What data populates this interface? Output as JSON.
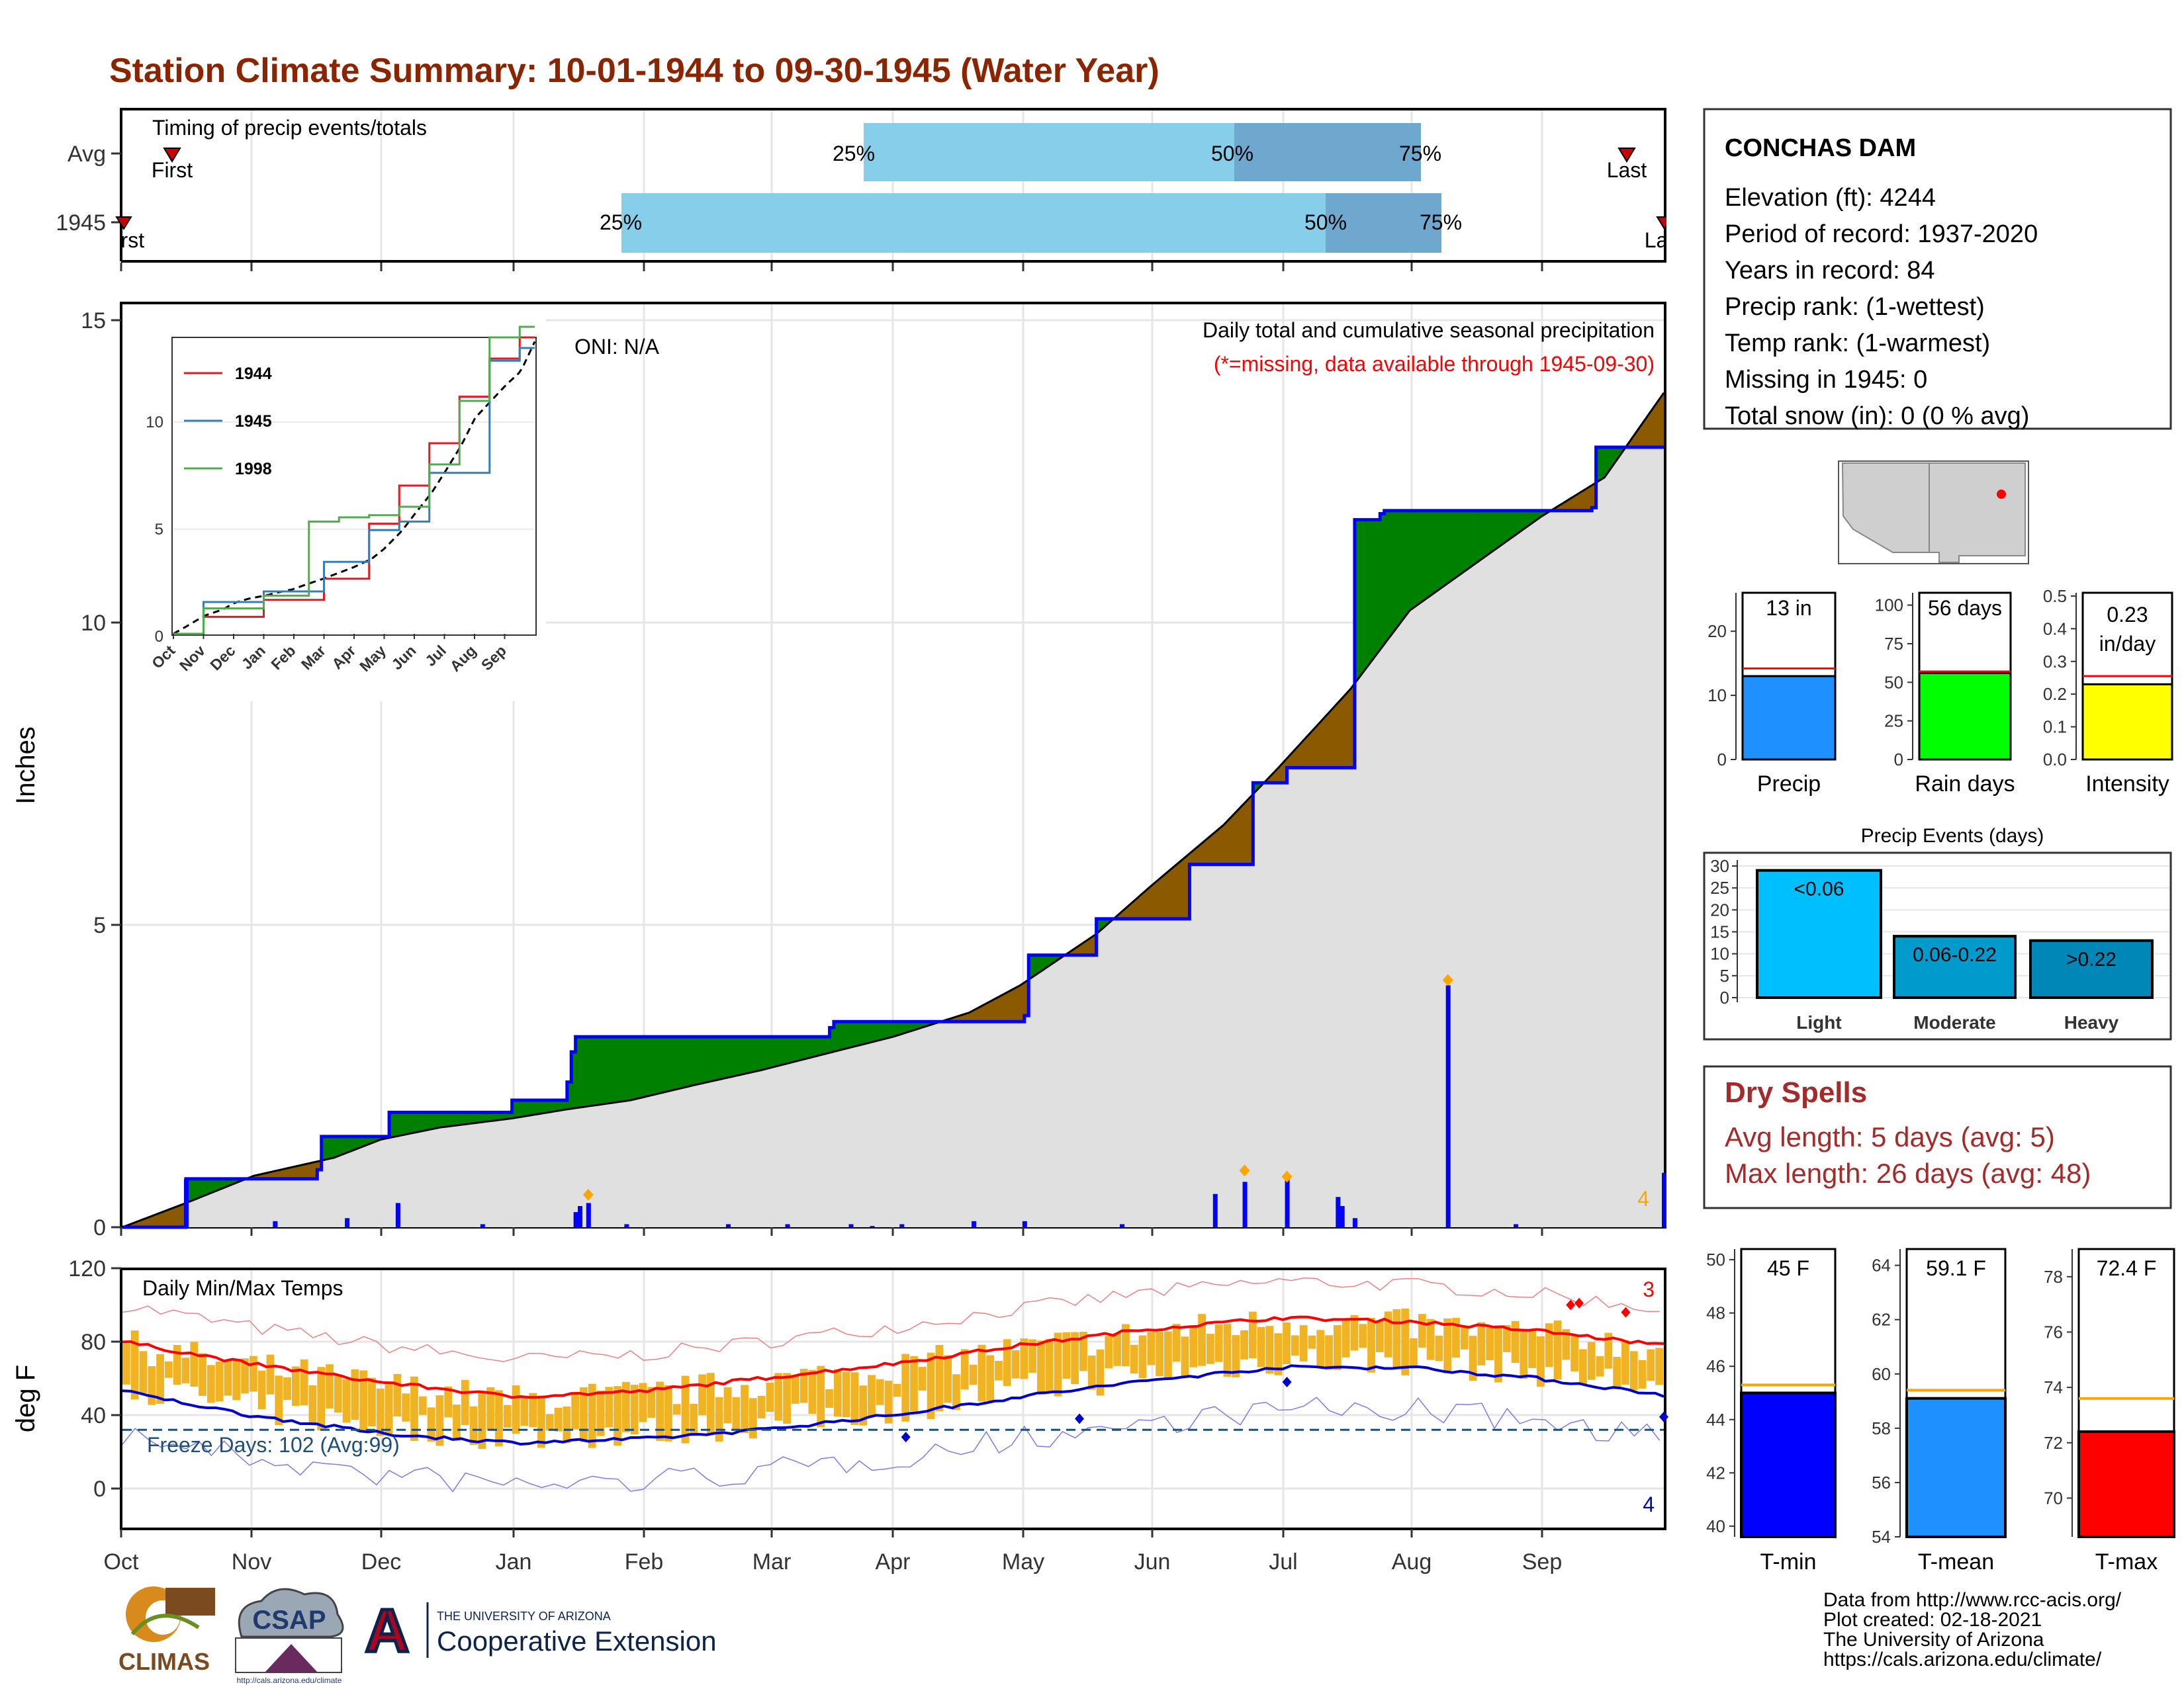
{
  "title": "Station Climate Summary: 10-01-1944 to 09-30-1945 (Water Year)",
  "colors": {
    "title": "#8B2500",
    "precip_bar": "#0000FF",
    "surplus": "#008000",
    "deficit": "#8B5A00",
    "normal_fill": "#E0E0E0",
    "quartile_light": "#87CEEB",
    "quartile_dark": "#6FA8CF",
    "temp_band": "#F0B323",
    "tmax_line": "#FF0000",
    "tmin_line": "#0000CD",
    "freeze_line": "#1F4E79",
    "dry_spell_text": "#A52A2A"
  },
  "timing_panel": {
    "label": "Timing of precip events/totals",
    "rows": [
      {
        "label": "Avg",
        "first_label": "First",
        "last_label": "Last",
        "q25": "25%",
        "q50": "50%",
        "q75": "75%"
      },
      {
        "label": "1945",
        "first_label": "First",
        "last_label": "Last",
        "q25": "25%",
        "q50": "50%",
        "q75": "75%"
      }
    ]
  },
  "station": {
    "name": "CONCHAS DAM",
    "lines": [
      "Elevation (ft): 4244",
      "Period of record: 1937-2020",
      "Years in record: 84",
      "Precip rank:  (1-wettest)",
      "Temp rank:  (1-warmest)",
      "Missing in 1945: 0",
      "Total snow (in): 0 (0 % avg)"
    ]
  },
  "precip_panel": {
    "ylabel": "Inches",
    "subtitle": "Daily total and cumulative seasonal precipitation",
    "missing_note": "(*=missing, data available through 1945-09-30)",
    "oni": "ONI: N/A",
    "extreme_count": "4",
    "yticks": [
      "0",
      "5",
      "10",
      "15"
    ]
  },
  "inset": {
    "series": [
      "1944",
      "1945",
      "1998"
    ],
    "series_colors": [
      "#E41A1C",
      "#377EB8",
      "#4DAF4A"
    ],
    "xticks": [
      "Oct",
      "Nov",
      "Dec",
      "Jan",
      "Feb",
      "Mar",
      "Apr",
      "May",
      "Jun",
      "Jul",
      "Aug",
      "Sep"
    ],
    "yticks": [
      "0",
      "5",
      "10"
    ]
  },
  "temp_panel": {
    "ylabel": "deg F",
    "label": "Daily Min/Max Temps",
    "freeze_label": "Freeze Days: 102 (Avg:99)",
    "hot_count": "3",
    "cold_count": "4",
    "yticks": [
      "0",
      "40",
      "80",
      "120"
    ]
  },
  "month_labels": [
    "Oct",
    "Nov",
    "Dec",
    "Jan",
    "Feb",
    "Mar",
    "Apr",
    "May",
    "Jun",
    "Jul",
    "Aug",
    "Sep"
  ],
  "mini_bars": [
    {
      "value_label": "13 in",
      "xlabel": "Precip",
      "yticks": [
        "0",
        "10",
        "20"
      ],
      "color": "#1E90FF"
    },
    {
      "value_label": "56 days",
      "xlabel": "Rain days",
      "yticks": [
        "0",
        "25",
        "50",
        "75",
        "100"
      ],
      "color": "#00FF00"
    },
    {
      "value_label": "0.23",
      "value_label2": "in/day",
      "xlabel": "Intensity",
      "yticks": [
        "0.0",
        "0.1",
        "0.2",
        "0.3",
        "0.4",
        "0.5"
      ],
      "color": "#FFFF00"
    }
  ],
  "events": {
    "title": "Precip Events (days)",
    "categories": [
      "Light",
      "Moderate",
      "Heavy"
    ],
    "bar_labels": [
      "<0.06",
      "0.06-0.22",
      ">0.22"
    ],
    "values": [
      29,
      14,
      13
    ],
    "colors": [
      "#00BFFF",
      "#009ACD",
      "#0087B8"
    ],
    "yticks": [
      "0",
      "5",
      "10",
      "15",
      "20",
      "25",
      "30"
    ]
  },
  "dry_spells": {
    "title": "Dry Spells",
    "avg_line": "Avg length: 5 days (avg: 5)",
    "max_line": "Max length: 26 days (avg: 48)"
  },
  "temp_bars": [
    {
      "value_label": "45 F",
      "xlabel": "T-min",
      "yticks": [
        "40",
        "42",
        "44",
        "46",
        "48",
        "50"
      ],
      "color": "#0000FF"
    },
    {
      "value_label": "59.1 F",
      "xlabel": "T-mean",
      "yticks": [
        "54",
        "56",
        "58",
        "60",
        "62",
        "64"
      ],
      "color": "#1E90FF"
    },
    {
      "value_label": "72.4 F",
      "xlabel": "T-max",
      "yticks": [
        "70",
        "72",
        "74",
        "76",
        "78"
      ],
      "color": "#FF0000"
    }
  ],
  "footer": {
    "lines": [
      "Data from http://www.rcc-acis.org/",
      "Plot created: 02-18-2021",
      "The University of Arizona",
      "https://cals.arizona.edu/climate/"
    ],
    "logo_climas": "CLIMAS",
    "logo_csap": "CSAP",
    "logo_csap_url": "http://cals.arizona.edu/climate",
    "ua_small": "THE UNIVERSITY OF ARIZONA",
    "ua_large": "Cooperative Extension",
    "ua_letter": "A"
  },
  "chart_data": [
    {
      "type": "area",
      "name": "cumulative_precip",
      "xlabel": "",
      "ylabel": "Inches",
      "ylim": [
        0,
        15
      ],
      "months": [
        "Oct",
        "Nov",
        "Dec",
        "Jan",
        "Feb",
        "Mar",
        "Apr",
        "May",
        "Jun",
        "Jul",
        "Aug",
        "Sep"
      ],
      "normal_cumulative": {
        "x_day": [
          0,
          15,
          31,
          50,
          61,
          75,
          92,
          105,
          120,
          135,
          151,
          165,
          182,
          200,
          212,
          230,
          243,
          260,
          273,
          290,
          304,
          320,
          335,
          350,
          364
        ],
        "y": [
          0,
          0.4,
          0.85,
          1.15,
          1.45,
          1.65,
          1.8,
          1.95,
          2.1,
          2.35,
          2.6,
          2.85,
          3.15,
          3.55,
          4.0,
          4.85,
          5.65,
          6.65,
          7.6,
          8.9,
          10.2,
          11.0,
          11.75,
          12.4,
          13.8
        ]
      },
      "observed_cumulative": {
        "x_day": [
          0,
          14,
          15,
          31,
          32,
          46,
          47,
          62,
          63,
          92,
          93,
          105,
          106,
          107,
          167,
          168,
          213,
          214,
          229,
          230,
          251,
          252,
          266,
          267,
          275,
          276,
          290,
          291,
          297,
          298,
          347,
          348,
          364
        ],
        "y": [
          0,
          0,
          0.8,
          0.8,
          0.8,
          0.95,
          1.5,
          1.5,
          1.9,
          2.1,
          2.1,
          2.4,
          2.9,
          3.15,
          3.3,
          3.4,
          3.5,
          4.5,
          4.5,
          5.1,
          5.1,
          6.0,
          6.0,
          7.35,
          7.6,
          7.6,
          7.6,
          11.7,
          11.8,
          11.85,
          11.9,
          12.9,
          12.9
        ]
      },
      "daily_precip": {
        "x_day": [
          15,
          36,
          53,
          65,
          85,
          107,
          108,
          110,
          119,
          143,
          157,
          172,
          177,
          184,
          201,
          213,
          236,
          258,
          265,
          275,
          287,
          288,
          291,
          313,
          329,
          364
        ],
        "y": [
          0.8,
          0.1,
          0.15,
          0.4,
          0.05,
          0.25,
          0.35,
          0.4,
          0.05,
          0.05,
          0.05,
          0.05,
          0.02,
          0.05,
          0.1,
          0.1,
          0.05,
          0.55,
          0.75,
          0.85,
          0.5,
          0.35,
          0.15,
          4.0,
          0.05,
          0.9
        ]
      }
    },
    {
      "type": "line",
      "name": "inset_cumulative",
      "series": [
        {
          "name": "1944",
          "x_month": [
            0,
            2,
            4,
            6,
            7,
            8,
            9,
            10,
            11,
            12
          ],
          "values": [
            0,
            0.8,
            1.6,
            2.6,
            5.2,
            7.0,
            9.0,
            11.2,
            13.0,
            14.0
          ]
        },
        {
          "name": "1945",
          "x_month": [
            0,
            2,
            4,
            6,
            7,
            8,
            9,
            10,
            11,
            12
          ],
          "values": [
            0,
            1.5,
            2.0,
            3.4,
            4.9,
            5.3,
            7.6,
            7.6,
            12.9,
            13.5
          ]
        },
        {
          "name": "1998",
          "x_month": [
            0,
            2,
            4,
            5,
            6,
            7,
            8,
            9,
            10,
            11,
            12
          ],
          "values": [
            0,
            1.2,
            1.8,
            5.3,
            5.5,
            5.6,
            6.0,
            8.0,
            11.0,
            14.0,
            14.5
          ]
        }
      ],
      "ylim": [
        0,
        14
      ]
    },
    {
      "type": "line",
      "name": "daily_temps",
      "ylabel": "deg F",
      "ylim": [
        -40,
        120
      ],
      "freeze_line": 32,
      "normal_tmax": {
        "x_day": [
          0,
          30,
          61,
          92,
          123,
          151,
          182,
          212,
          243,
          273,
          304,
          334,
          364
        ],
        "y": [
          80,
          68,
          58,
          50,
          53,
          60,
          68,
          78,
          87,
          93,
          91,
          86,
          78
        ]
      },
      "normal_tmin": {
        "x_day": [
          0,
          30,
          61,
          92,
          123,
          151,
          182,
          212,
          243,
          273,
          304,
          334,
          364
        ],
        "y": [
          53,
          40,
          30,
          25,
          27,
          32,
          40,
          50,
          59,
          66,
          66,
          60,
          51
        ]
      }
    }
  ]
}
